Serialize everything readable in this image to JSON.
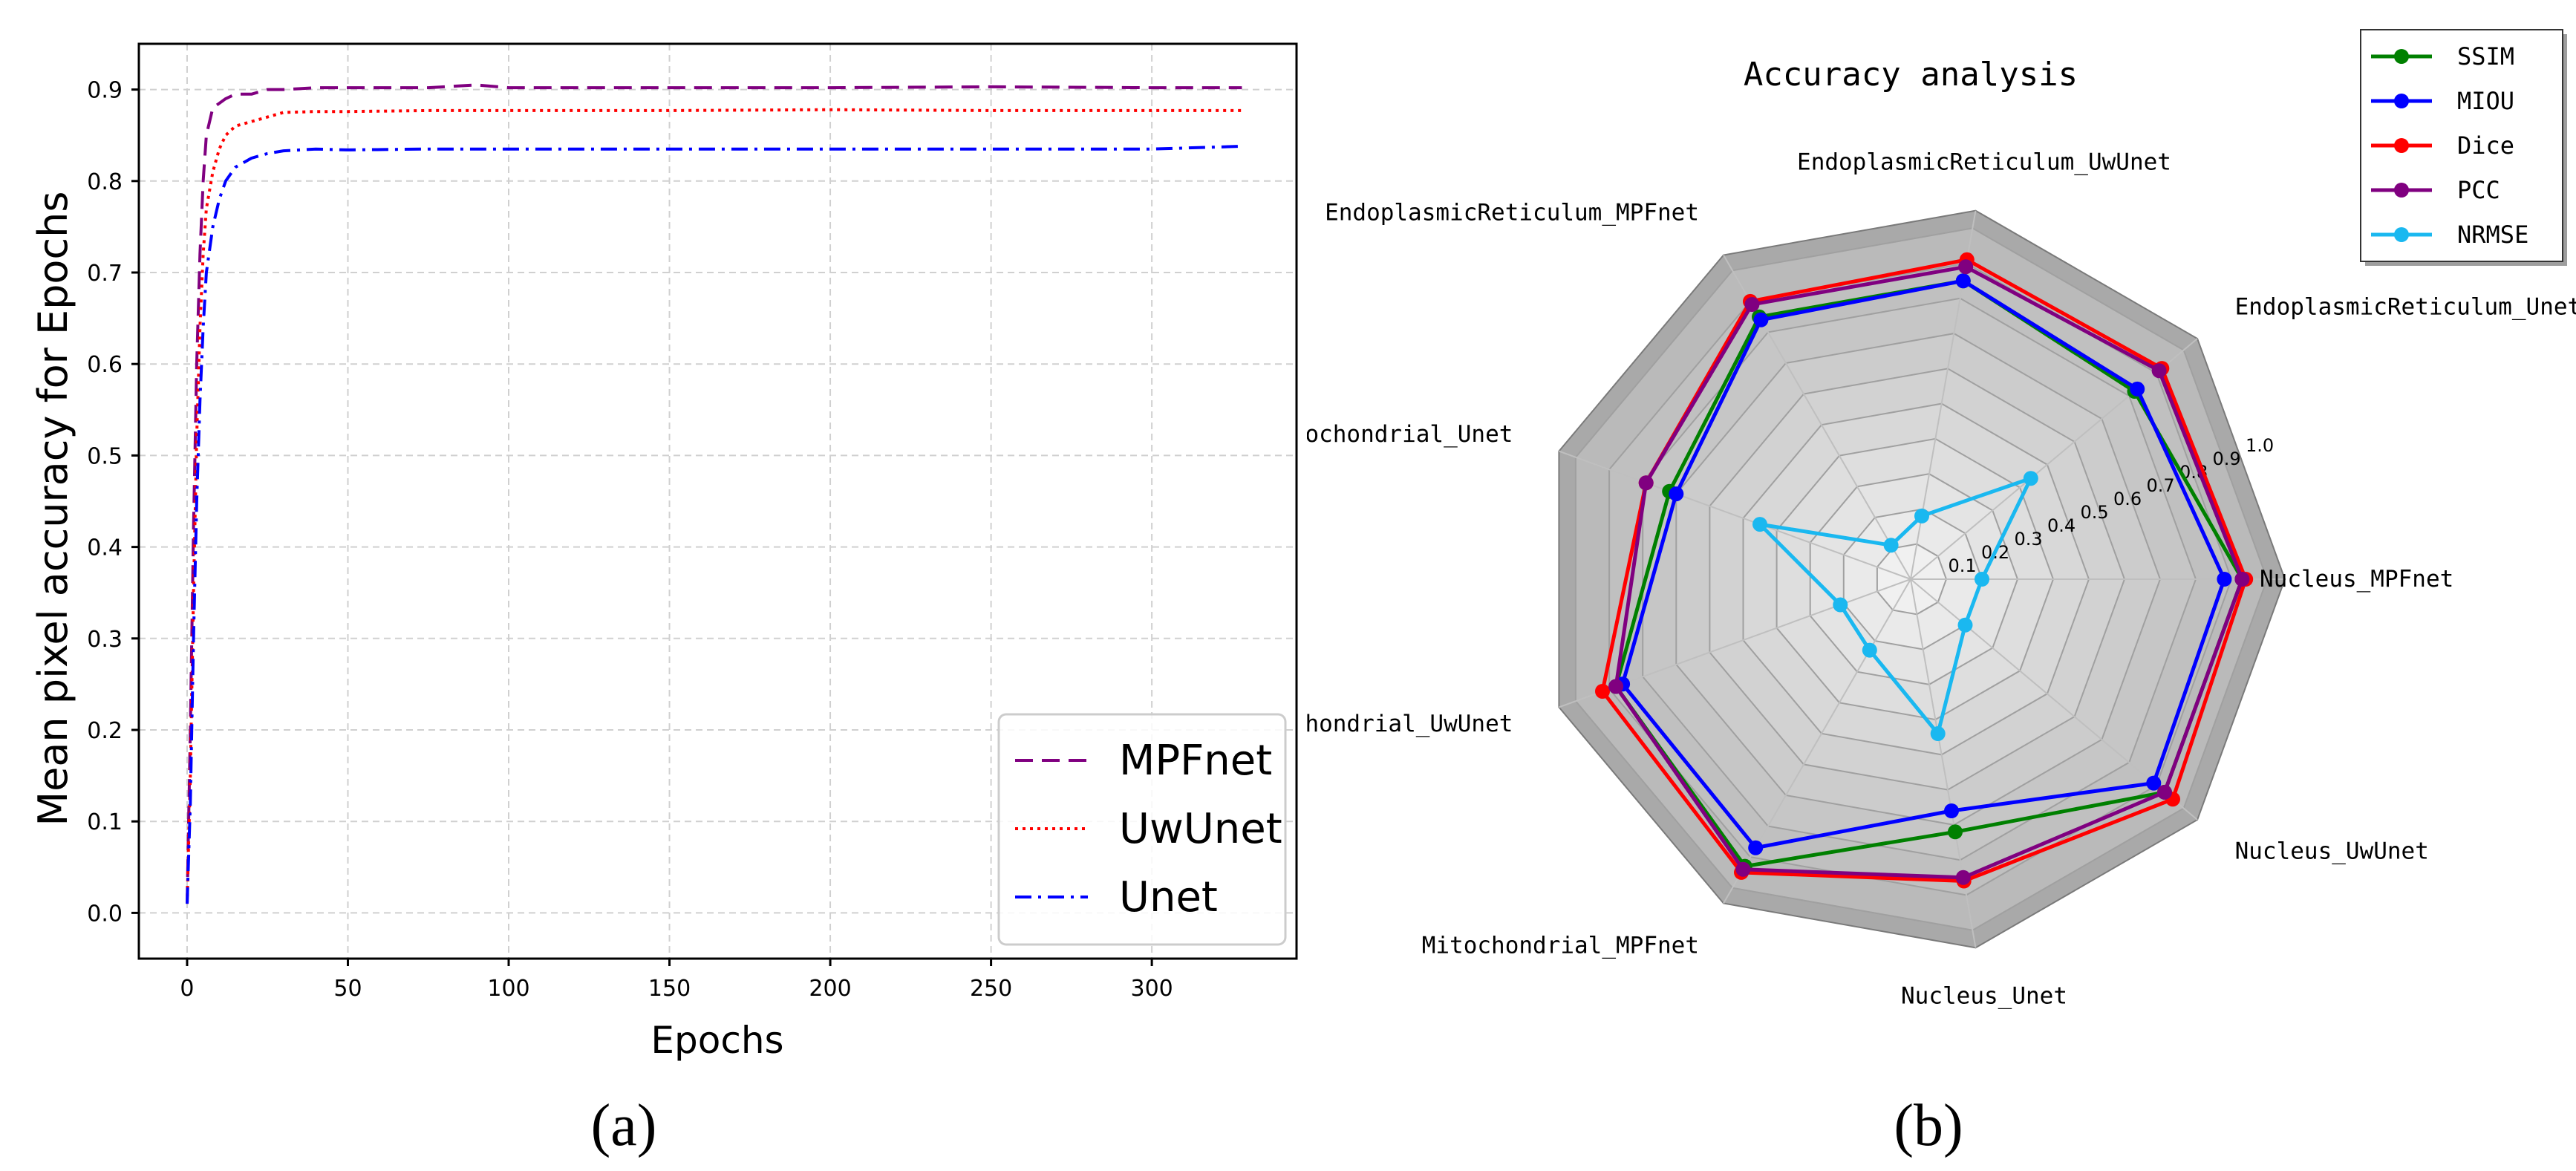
{
  "chart_data": [
    {
      "type": "line",
      "panel_label": "(a)",
      "xlabel": "Epochs",
      "ylabel": "Mean pixel accuracy for Epochs",
      "xlim": [
        -15,
        345
      ],
      "ylim": [
        -0.05,
        0.95
      ],
      "xticks": [
        0,
        50,
        100,
        150,
        200,
        250,
        300
      ],
      "yticks": [
        0.0,
        0.1,
        0.2,
        0.3,
        0.4,
        0.5,
        0.6,
        0.7,
        0.8,
        0.9
      ],
      "grid": true,
      "legend_position": "lower-right",
      "series": [
        {
          "name": "MPFnet",
          "color": "#800080",
          "style": "dashed",
          "x": [
            0,
            1,
            2,
            3,
            4,
            5,
            6,
            8,
            10,
            12,
            15,
            20,
            25,
            30,
            40,
            50,
            75,
            90,
            100,
            150,
            200,
            250,
            300,
            328
          ],
          "y": [
            0.01,
            0.2,
            0.42,
            0.6,
            0.72,
            0.8,
            0.85,
            0.88,
            0.885,
            0.89,
            0.895,
            0.895,
            0.9,
            0.9,
            0.902,
            0.902,
            0.902,
            0.905,
            0.902,
            0.902,
            0.902,
            0.903,
            0.902,
            0.902
          ]
        },
        {
          "name": "UwUnet",
          "color": "#ff0000",
          "style": "dotted",
          "x": [
            0,
            1,
            2,
            3,
            4,
            5,
            6,
            8,
            10,
            12,
            15,
            20,
            25,
            30,
            40,
            50,
            75,
            100,
            150,
            200,
            250,
            300,
            328
          ],
          "y": [
            0.01,
            0.15,
            0.35,
            0.52,
            0.64,
            0.72,
            0.77,
            0.81,
            0.835,
            0.85,
            0.86,
            0.865,
            0.87,
            0.875,
            0.876,
            0.876,
            0.877,
            0.877,
            0.877,
            0.878,
            0.877,
            0.877,
            0.877
          ]
        },
        {
          "name": "Unet",
          "color": "#0000ff",
          "style": "dashdot",
          "x": [
            0,
            1,
            2,
            3,
            4,
            5,
            6,
            8,
            10,
            12,
            15,
            20,
            25,
            30,
            40,
            50,
            75,
            100,
            150,
            200,
            250,
            300,
            328
          ],
          "y": [
            0.01,
            0.12,
            0.3,
            0.45,
            0.56,
            0.64,
            0.7,
            0.75,
            0.78,
            0.8,
            0.815,
            0.825,
            0.83,
            0.833,
            0.835,
            0.834,
            0.835,
            0.835,
            0.835,
            0.835,
            0.835,
            0.835,
            0.838
          ]
        }
      ]
    },
    {
      "type": "radar",
      "panel_label": "(b)",
      "title": "Accuracy analysis",
      "rmax": 1.0,
      "radial_ticks": [
        "0.1",
        "0.2",
        "0.3",
        "0.4",
        "0.5",
        "0.6",
        "0.7",
        "0.8",
        "0.9",
        "1.0"
      ],
      "legend_position": "top-right",
      "categories": [
        "Nucleus_MPFnet",
        "EndoplasmicReticulum_Unet",
        "EndoplasmicReticulum_UwUnet",
        "EndoplasmicReticulum_MPFnet",
        "Mitochondrial_Unet",
        "Mitochondrial_UwUnet",
        "Mitochondrial_MPFnet",
        "Nucleus_Unet",
        "Nucleus_UwUnet"
      ],
      "series": [
        {
          "name": "SSIM",
          "color": "#008000",
          "values": [
            0.93,
            0.82,
            0.85,
            0.85,
            0.72,
            0.88,
            0.93,
            0.72,
            0.93
          ]
        },
        {
          "name": "MIOU",
          "color": "#0000ff",
          "values": [
            0.88,
            0.83,
            0.85,
            0.84,
            0.7,
            0.86,
            0.87,
            0.66,
            0.89
          ]
        },
        {
          "name": "Dice",
          "color": "#ff0000",
          "values": [
            0.94,
            0.92,
            0.91,
            0.9,
            0.79,
            0.92,
            0.95,
            0.86,
            0.96
          ]
        },
        {
          "name": "PCC",
          "color": "#800080",
          "values": [
            0.93,
            0.91,
            0.89,
            0.89,
            0.79,
            0.88,
            0.94,
            0.85,
            0.93
          ]
        },
        {
          "name": "NRMSE",
          "color": "#1ab8f0",
          "values": [
            0.2,
            0.44,
            0.18,
            0.11,
            0.45,
            0.21,
            0.23,
            0.44,
            0.2
          ]
        }
      ]
    }
  ]
}
